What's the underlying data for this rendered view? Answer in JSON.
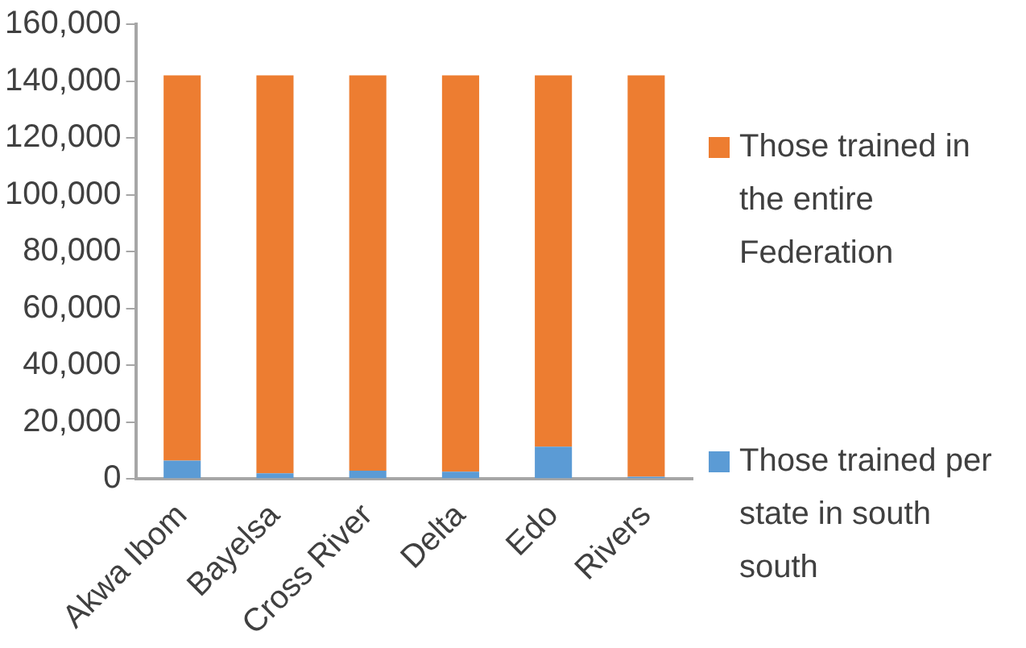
{
  "chart_data": {
    "type": "bar",
    "stacked": true,
    "categories": [
      "Akwa Ibom",
      "Bayelsa",
      "Cross River",
      "Delta",
      "Edo",
      "Rivers"
    ],
    "series": [
      {
        "name": "Those trained per state in south south",
        "color": "#5b9bd5",
        "values": [
          6500,
          2000,
          2900,
          2600,
          11400,
          800
        ]
      },
      {
        "name": "Those trained in the entire Federation",
        "color": "#ed7d31",
        "values": [
          135500,
          140000,
          139100,
          139400,
          130600,
          141200
        ]
      }
    ],
    "ylim": [
      0,
      160000
    ],
    "yticks": [
      0,
      {
        "value": 20000,
        "label": "20,000"
      },
      {
        "value": 40000,
        "label": "40,000"
      },
      {
        "value": 60000,
        "label": "60,000"
      },
      {
        "value": 80000,
        "label": "80,000"
      },
      {
        "value": 100000,
        "label": "100,000"
      },
      {
        "value": 120000,
        "label": "120,000"
      },
      {
        "value": 140000,
        "label": "140,000"
      },
      {
        "value": 160000,
        "label": "160,000"
      }
    ],
    "grid": false,
    "legend": "right"
  }
}
